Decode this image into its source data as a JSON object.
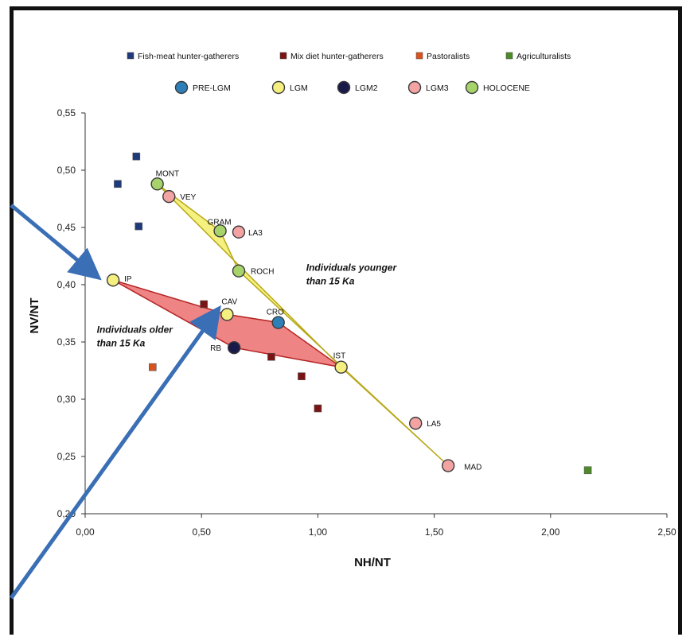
{
  "chart_data": {
    "type": "scatter",
    "xlabel": "NH/NT",
    "ylabel": "NV/NT",
    "xlim": [
      0,
      2.5
    ],
    "ylim": [
      0.2,
      0.55
    ],
    "xticks": [
      "0,00",
      "0,50",
      "1,00",
      "1,50",
      "2,00",
      "2,50"
    ],
    "yticks": [
      "0,20",
      "0,25",
      "0,30",
      "0,35",
      "0,40",
      "0,45",
      "0,50",
      "0,55"
    ],
    "grid": false,
    "legend_position": "top",
    "legend_row1": [
      {
        "name": "Fish-meat hunter-gatherers",
        "color": "#1f3a7a"
      },
      {
        "name": "Mix diet hunter-gatherers",
        "color": "#7a1414"
      },
      {
        "name": "Pastoralists",
        "color": "#d9531e"
      },
      {
        "name": "Agriculturalists",
        "color": "#4f8a2a"
      }
    ],
    "legend_row2": [
      {
        "name": "PRE-LGM",
        "color": "#2e7fb8"
      },
      {
        "name": "LGM",
        "color": "#f5ef80"
      },
      {
        "name": "LGM2",
        "color": "#1a1a4a"
      },
      {
        "name": "LGM3",
        "color": "#f4a3a3"
      },
      {
        "name": "HOLOCENE",
        "color": "#a6d46a"
      }
    ],
    "square_series": [
      {
        "name": "Fish-meat hunter-gatherers",
        "color": "#1f3a7a",
        "points": [
          [
            0.22,
            0.512
          ],
          [
            0.14,
            0.488
          ],
          [
            0.23,
            0.451
          ]
        ]
      },
      {
        "name": "Mix diet hunter-gatherers",
        "color": "#7a1414",
        "points": [
          [
            0.51,
            0.383
          ],
          [
            0.8,
            0.337
          ],
          [
            0.93,
            0.32
          ],
          [
            1.0,
            0.292
          ]
        ]
      },
      {
        "name": "Pastoralists",
        "color": "#d9531e",
        "points": [
          [
            0.29,
            0.328
          ]
        ]
      },
      {
        "name": "Agriculturalists",
        "color": "#4f8a2a",
        "points": [
          [
            2.16,
            0.238
          ]
        ]
      }
    ],
    "circle_points": [
      {
        "label": "MONT",
        "group": "HOLOCENE",
        "x": 0.31,
        "y": 0.488
      },
      {
        "label": "VEY",
        "group": "LGM3",
        "x": 0.36,
        "y": 0.477
      },
      {
        "label": "GRAM",
        "group": "HOLOCENE",
        "x": 0.58,
        "y": 0.447
      },
      {
        "label": "LA3",
        "group": "LGM3",
        "x": 0.66,
        "y": 0.446
      },
      {
        "label": "ROCH",
        "group": "HOLOCENE",
        "x": 0.66,
        "y": 0.412
      },
      {
        "label": "IP",
        "group": "LGM",
        "x": 0.12,
        "y": 0.404
      },
      {
        "label": "CAV",
        "group": "LGM",
        "x": 0.61,
        "y": 0.374
      },
      {
        "label": "CRO",
        "group": "PRE-LGM",
        "x": 0.83,
        "y": 0.367
      },
      {
        "label": "RB",
        "group": "LGM2",
        "x": 0.64,
        "y": 0.345
      },
      {
        "label": "IST",
        "group": "LGM",
        "x": 1.1,
        "y": 0.328
      },
      {
        "label": "LA5",
        "group": "LGM3",
        "x": 1.42,
        "y": 0.279
      },
      {
        "label": "MAD",
        "group": "LGM3",
        "x": 1.56,
        "y": 0.242
      }
    ],
    "polygons": [
      {
        "name": "younger",
        "fill": "#f2ee6a",
        "stroke": "#b8a81a",
        "points": [
          [
            0.31,
            0.488
          ],
          [
            1.1,
            0.328
          ],
          [
            1.56,
            0.242
          ],
          [
            0.66,
            0.412
          ],
          [
            0.58,
            0.447
          ],
          [
            0.31,
            0.488
          ]
        ]
      },
      {
        "name": "older",
        "fill": "#ec6f6f",
        "stroke": "#b42222",
        "points": [
          [
            0.12,
            0.404
          ],
          [
            0.61,
            0.374
          ],
          [
            0.83,
            0.367
          ],
          [
            1.1,
            0.328
          ],
          [
            0.64,
            0.345
          ],
          [
            0.12,
            0.404
          ]
        ]
      }
    ],
    "annotations": [
      {
        "lines": [
          "Individuals younger",
          "than 15 Ka"
        ],
        "x": 0.95,
        "y": 0.412
      },
      {
        "lines": [
          "Individuals older",
          "than 15 Ka"
        ],
        "x": 0.05,
        "y": 0.358
      }
    ]
  }
}
